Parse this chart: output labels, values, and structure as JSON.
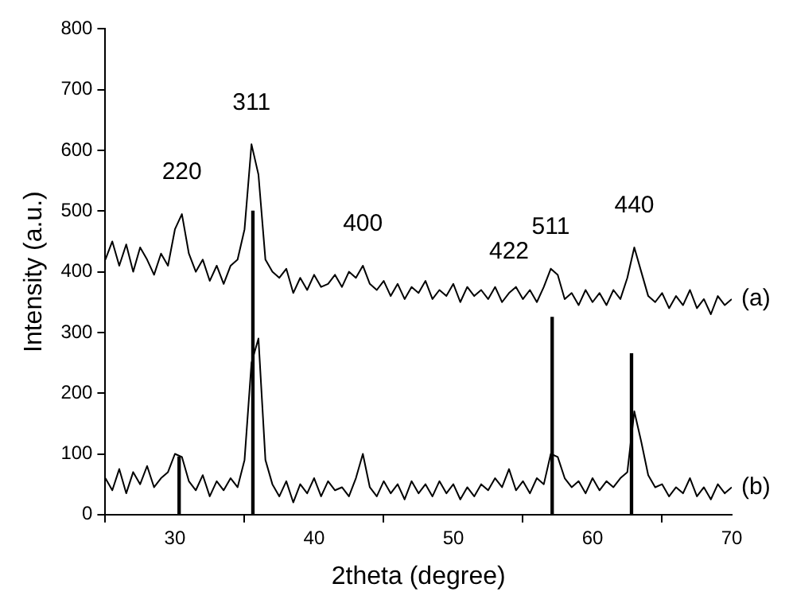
{
  "chart_data": {
    "type": "line",
    "xlabel": "2theta (degree)",
    "ylabel": "Intensity (a.u.)",
    "x": [
      25,
      25.5,
      26,
      26.5,
      27,
      27.5,
      28,
      28.5,
      29,
      29.5,
      30,
      30.5,
      31,
      31.5,
      32,
      32.5,
      33,
      33.5,
      34,
      34.5,
      35,
      35.5,
      36,
      36.5,
      37,
      37.5,
      38,
      38.5,
      39,
      39.5,
      40,
      40.5,
      41,
      41.5,
      42,
      42.5,
      43,
      43.5,
      44,
      44.5,
      45,
      45.5,
      46,
      46.5,
      47,
      47.5,
      48,
      48.5,
      49,
      49.5,
      50,
      50.5,
      51,
      51.5,
      52,
      52.5,
      53,
      53.5,
      54,
      54.5,
      55,
      55.5,
      56,
      56.5,
      57,
      57.5,
      58,
      58.5,
      59,
      59.5,
      60,
      60.5,
      61,
      61.5,
      62,
      62.5,
      63,
      63.5,
      64,
      64.5,
      65,
      65.5,
      66,
      66.5,
      67,
      67.5,
      68,
      68.5,
      69,
      69.5,
      70
    ],
    "series": [
      {
        "name": "(a)",
        "color": "#000000",
        "values": [
          420,
          450,
          410,
          445,
          400,
          440,
          420,
          395,
          430,
          410,
          470,
          495,
          430,
          400,
          420,
          385,
          410,
          380,
          410,
          420,
          470,
          610,
          560,
          420,
          400,
          390,
          405,
          365,
          390,
          370,
          395,
          375,
          380,
          395,
          375,
          400,
          390,
          410,
          380,
          370,
          385,
          360,
          380,
          355,
          375,
          365,
          385,
          355,
          370,
          360,
          380,
          350,
          375,
          360,
          370,
          355,
          375,
          350,
          365,
          375,
          355,
          370,
          350,
          375,
          405,
          395,
          355,
          365,
          345,
          370,
          350,
          365,
          345,
          370,
          355,
          390,
          440,
          400,
          360,
          350,
          365,
          340,
          360,
          345,
          370,
          340,
          355,
          330,
          360,
          345,
          355
        ]
      },
      {
        "name": "(b)",
        "color": "#000000",
        "values": [
          60,
          40,
          75,
          35,
          70,
          50,
          80,
          45,
          60,
          70,
          100,
          95,
          55,
          40,
          65,
          30,
          55,
          40,
          60,
          45,
          90,
          250,
          290,
          90,
          50,
          30,
          55,
          20,
          50,
          35,
          60,
          30,
          55,
          40,
          45,
          30,
          60,
          100,
          45,
          30,
          55,
          35,
          50,
          25,
          55,
          35,
          50,
          30,
          55,
          35,
          50,
          25,
          45,
          30,
          50,
          40,
          60,
          45,
          75,
          40,
          55,
          35,
          60,
          50,
          100,
          95,
          60,
          45,
          55,
          35,
          60,
          40,
          55,
          45,
          60,
          70,
          170,
          120,
          65,
          45,
          50,
          30,
          45,
          35,
          60,
          30,
          45,
          25,
          50,
          35,
          45
        ]
      },
      {
        "type": "bar",
        "color": "#000000",
        "x": [
          30.3,
          35.6,
          57.1,
          62.8
        ],
        "values": [
          95,
          500,
          325,
          265
        ]
      }
    ],
    "xlim": [
      25,
      70
    ],
    "xticks": [
      30,
      40,
      50,
      60,
      70
    ],
    "ylim": [
      0,
      800
    ],
    "yticks": [
      0,
      100,
      200,
      300,
      400,
      500,
      600,
      700,
      800
    ],
    "grid": false,
    "legend": false,
    "marker": "none",
    "line_style": "solid",
    "annotations": [
      {
        "text": "220",
        "x": 30.5,
        "y": 495
      },
      {
        "text": "311",
        "x": 35.5,
        "y": 610
      },
      {
        "text": "400",
        "x": 43.5,
        "y": 410
      },
      {
        "text": "422",
        "x": 54,
        "y": 365
      },
      {
        "text": "511",
        "x": 57,
        "y": 405
      },
      {
        "text": "440",
        "x": 63,
        "y": 440
      }
    ]
  }
}
